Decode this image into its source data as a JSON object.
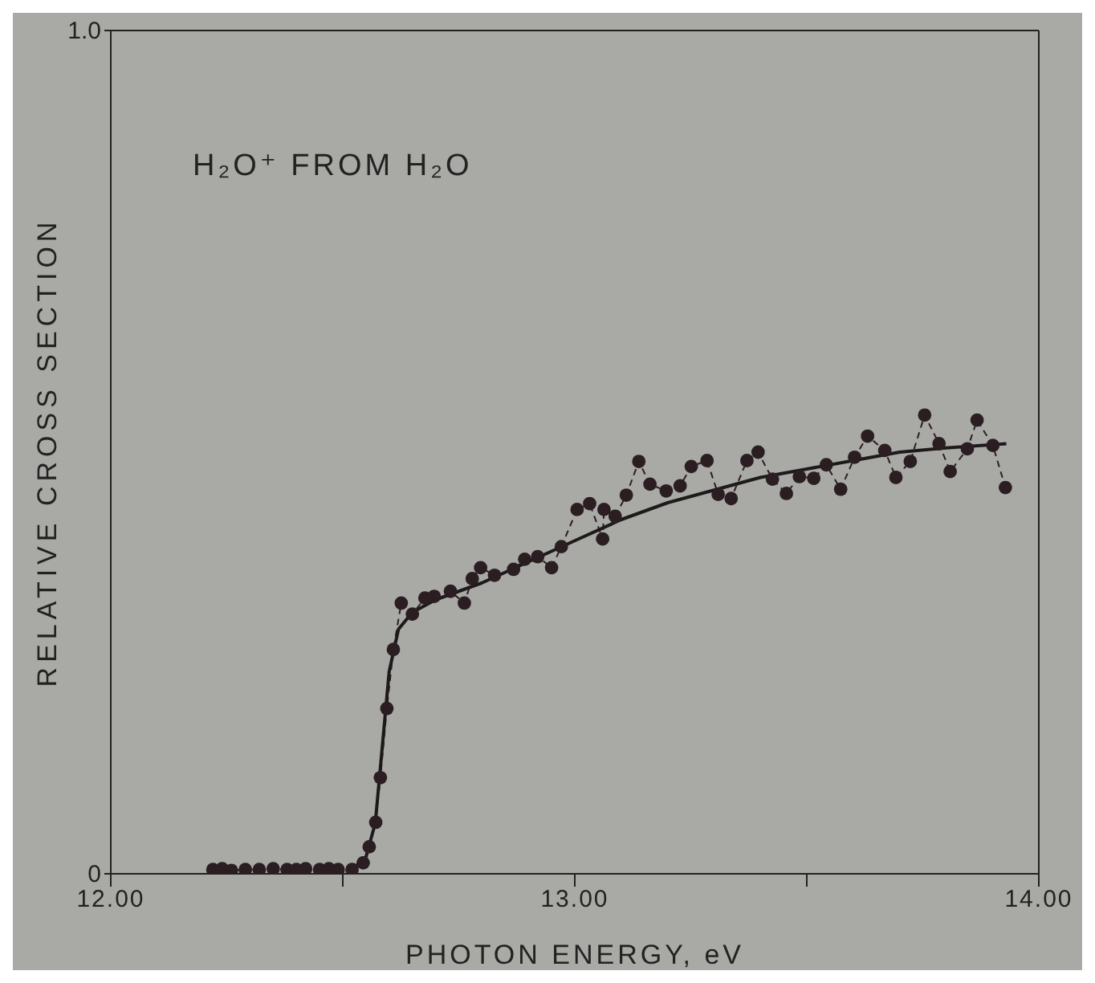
{
  "chart_data": {
    "type": "line",
    "xlabel": "PHOTON ENERGY, eV",
    "ylabel": "RELATIVE CROSS SECTION",
    "annotations": [
      "H₂O⁺ FROM H₂O"
    ],
    "xlim": [
      12.0,
      14.0
    ],
    "xticks": [
      {
        "value": 12.0,
        "label": "12.00"
      },
      {
        "value": 12.5,
        "label": null
      },
      {
        "value": 13.0,
        "label": "13.00"
      },
      {
        "value": 13.5,
        "label": null
      },
      {
        "value": 14.0,
        "label": "14.00"
      }
    ],
    "ylim": [
      0,
      1.0
    ],
    "yticks": [
      0,
      {
        "value": 1.0,
        "label": "1.0"
      }
    ],
    "series": [
      {
        "marker": "circle",
        "line_style": "dashed",
        "color": "#2a1e22",
        "x": [
          12.22,
          12.24,
          12.26,
          12.29,
          12.32,
          12.35,
          12.38,
          12.4,
          12.42,
          12.45,
          12.47,
          12.49,
          12.52,
          12.544,
          12.557,
          12.571,
          12.581,
          12.595,
          12.609,
          12.626,
          12.65,
          12.677,
          12.697,
          12.732,
          12.762,
          12.779,
          12.797,
          12.827,
          12.868,
          12.892,
          12.92,
          12.95,
          12.971,
          13.005,
          13.032,
          13.06,
          13.063,
          13.087,
          13.111,
          13.138,
          13.162,
          13.197,
          13.227,
          13.251,
          13.285,
          13.309,
          13.337,
          13.371,
          13.395,
          13.426,
          13.456,
          13.484,
          13.515,
          13.542,
          13.573,
          13.603,
          13.631,
          13.668,
          13.692,
          13.723,
          13.754,
          13.785,
          13.809,
          13.846,
          13.867,
          13.901,
          13.928
        ],
        "values": [
          0.005,
          0.006,
          0.004,
          0.005,
          0.005,
          0.006,
          0.005,
          0.005,
          0.006,
          0.005,
          0.006,
          0.005,
          0.005,
          0.013,
          0.032,
          0.061,
          0.114,
          0.196,
          0.266,
          0.321,
          0.308,
          0.327,
          0.329,
          0.335,
          0.321,
          0.35,
          0.363,
          0.354,
          0.361,
          0.373,
          0.376,
          0.363,
          0.388,
          0.432,
          0.439,
          0.397,
          0.432,
          0.424,
          0.449,
          0.489,
          0.462,
          0.454,
          0.46,
          0.483,
          0.49,
          0.45,
          0.445,
          0.49,
          0.5,
          0.468,
          0.451,
          0.471,
          0.469,
          0.485,
          0.456,
          0.494,
          0.519,
          0.502,
          0.47,
          0.489,
          0.544,
          0.51,
          0.477,
          0.504,
          0.538,
          0.508,
          0.458
        ]
      },
      {
        "marker": "none",
        "line_style": "solid",
        "color": "#1e1a1c",
        "x": [
          12.52,
          12.55,
          12.57,
          12.585,
          12.6,
          12.62,
          12.65,
          12.7,
          12.8,
          12.9,
          13.0,
          13.1,
          13.2,
          13.3,
          13.4,
          13.5,
          13.6,
          13.7,
          13.8,
          13.93
        ],
        "values": [
          0.005,
          0.02,
          0.06,
          0.15,
          0.24,
          0.29,
          0.31,
          0.325,
          0.345,
          0.37,
          0.395,
          0.42,
          0.44,
          0.455,
          0.47,
          0.48,
          0.49,
          0.5,
          0.505,
          0.51
        ]
      }
    ]
  }
}
